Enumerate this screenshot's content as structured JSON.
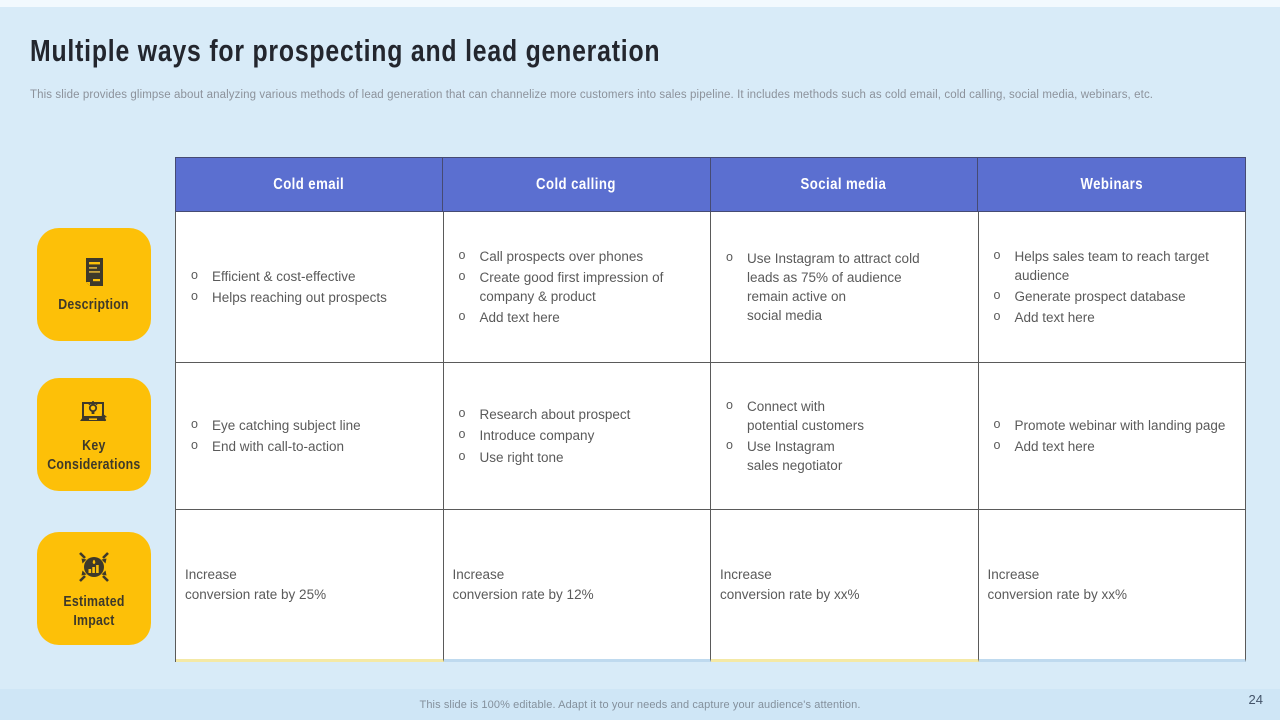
{
  "slide": {
    "title": "Multiple ways for prospecting and lead generation",
    "subtitle": "This slide provides glimpse about analyzing various methods of lead generation that can channelize more customers into sales pipeline. It includes methods such as cold email, cold calling, social media, webinars, etc.",
    "footer": "This slide is 100% editable. Adapt it to your needs and capture your audience's attention.",
    "page_number": "24"
  },
  "colors": {
    "background": "#D8EBF8",
    "header_blue": "#5B6FD0",
    "accent_yellow": "#FDC008",
    "icon_dark": "#3E392A",
    "cell_text": "#5A5A5A",
    "bottom_accent_yellow": "#F4E9A6",
    "bottom_accent_blue": "#BFDAEF"
  },
  "row_labels": [
    {
      "label": "Description",
      "icon": "document-icon"
    },
    {
      "label": "Key Considerations",
      "icon": "laptop-idea-icon"
    },
    {
      "label": "Estimated Impact",
      "icon": "impact-icon"
    }
  ],
  "table": {
    "columns": [
      "Cold email",
      "Cold calling",
      "Social media",
      "Webinars"
    ],
    "rows": [
      {
        "label": "Description",
        "cells": [
          {
            "bullets": [
              "Efficient & cost-effective",
              "Helps reaching out prospects"
            ]
          },
          {
            "bullets": [
              "Call prospects over phones",
              "Create good first impression of company & product",
              "Add text here"
            ]
          },
          {
            "bullets": [
              "Use Instagram to attract cold\nleads as 75% of audience\nremain active on\nsocial media"
            ]
          },
          {
            "bullets": [
              "Helps sales team to reach target audience",
              "Generate prospect database",
              "Add text here"
            ]
          }
        ]
      },
      {
        "label": "Key Considerations",
        "cells": [
          {
            "bullets": [
              "Eye catching subject line",
              "End with call-to-action"
            ]
          },
          {
            "bullets": [
              "Research about prospect",
              "Introduce  company",
              "Use right tone"
            ]
          },
          {
            "bullets": [
              "Connect with\npotential customers",
              "Use Instagram\nsales negotiator"
            ]
          },
          {
            "bullets": [
              "Promote webinar with landing page",
              "Add text here"
            ]
          }
        ]
      },
      {
        "label": "Estimated Impact",
        "cells": [
          {
            "text": "Increase\nconversion rate by 25%"
          },
          {
            "text": "Increase\nconversion rate by 12%"
          },
          {
            "text": "Increase\nconversion rate by xx%"
          },
          {
            "text": "Increase\nconversion rate by xx%"
          }
        ]
      }
    ]
  }
}
